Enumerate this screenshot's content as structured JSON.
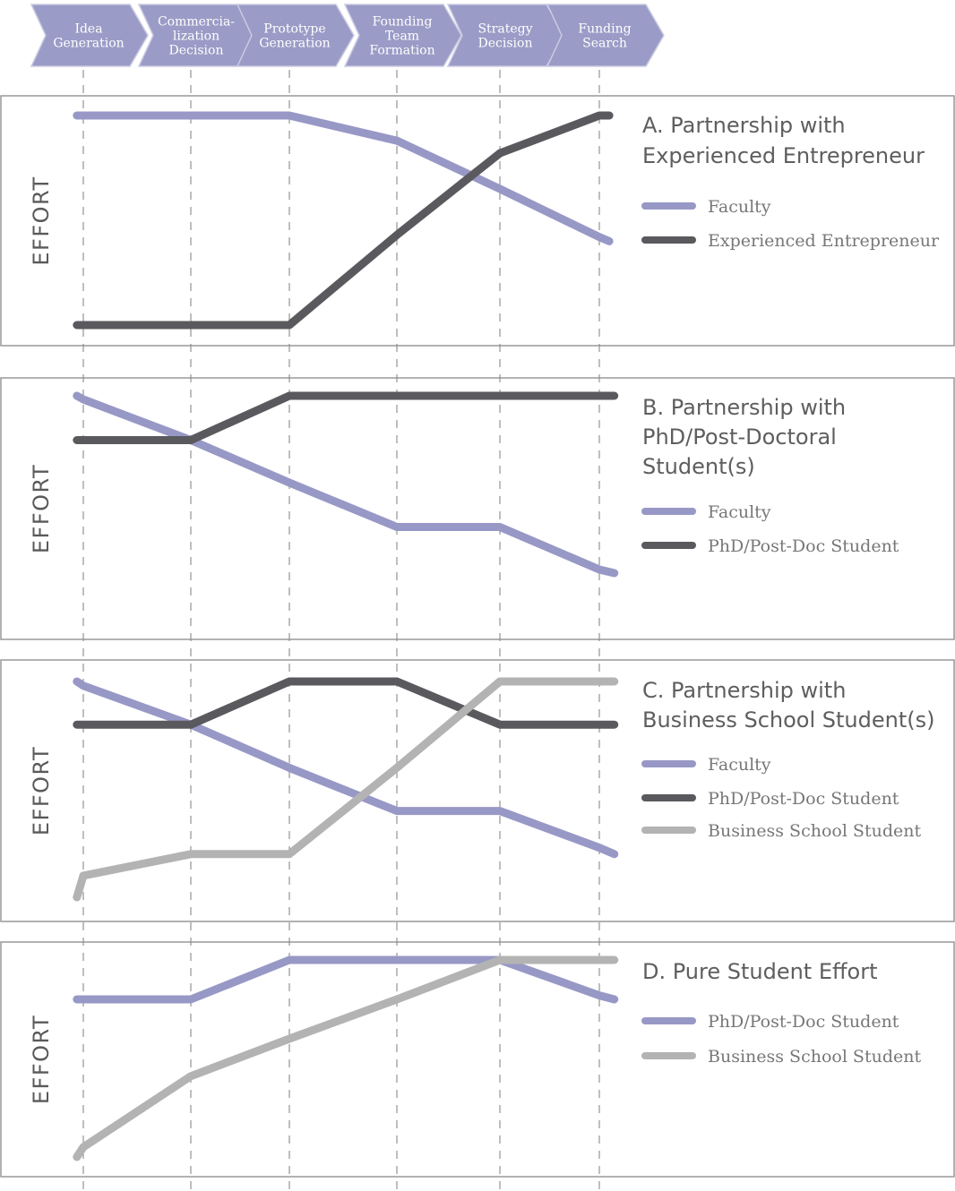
{
  "stages": [
    {
      "id": "s1",
      "lines": [
        "Idea",
        "Generation"
      ]
    },
    {
      "id": "s2",
      "lines": [
        "Commercia-",
        "lization",
        "Decision"
      ]
    },
    {
      "id": "s3",
      "lines": [
        "Prototype",
        "Generation"
      ]
    },
    {
      "id": "s4",
      "lines": [
        "Founding",
        "Team",
        "Formation"
      ]
    },
    {
      "id": "s5",
      "lines": [
        "Strategy",
        "Decision"
      ]
    },
    {
      "id": "s6",
      "lines": [
        "Funding",
        "Search"
      ]
    }
  ],
  "colors": {
    "faculty": "#9898c6",
    "dark": "#5a5a5e",
    "light": "#b3b3b3",
    "chevron": "#9a9bc6",
    "chevron_text": "#ffffff",
    "frame": "#999999",
    "axis_text": "#5a5a5a",
    "title_text": "#5e5e5e",
    "legend_text": "#777777"
  },
  "chart_data": [
    {
      "type": "line",
      "panel": "A",
      "title_lines": [
        "A. Partnership with",
        "Experienced Entrepreneur"
      ],
      "ylabel": "EFFORT",
      "ylim": [
        0,
        1
      ],
      "grid": "dashed vertical at each stage",
      "legend": "right",
      "categories": [
        "Idea Generation",
        "Commercialization Decision",
        "Prototype Generation",
        "Founding Team Formation",
        "Strategy Decision",
        "Funding Search"
      ],
      "series": [
        {
          "name": "Faculty",
          "color_key": "faculty",
          "x": [
            -0.06,
            0,
            1,
            2,
            3,
            4,
            5,
            5.1
          ],
          "values": [
            1.0,
            1.0,
            1.0,
            1.0,
            0.88,
            0.65,
            0.42,
            0.4
          ]
        },
        {
          "name": "Experienced Entrepreneur",
          "color_key": "dark",
          "x": [
            -0.06,
            0,
            1,
            2,
            3,
            4,
            5,
            5.1
          ],
          "values": [
            0.0,
            0.0,
            0.0,
            0.0,
            0.43,
            0.82,
            1.0,
            1.0
          ]
        }
      ]
    },
    {
      "type": "line",
      "panel": "B",
      "title_lines": [
        "B. Partnership with",
        "PhD/Post-Doctoral",
        "Student(s)"
      ],
      "ylabel": "EFFORT",
      "ylim": [
        0,
        1
      ],
      "grid": "dashed vertical at each stage",
      "legend": "right",
      "categories": [
        "Idea Generation",
        "Commercialization Decision",
        "Prototype Generation",
        "Founding Team Formation",
        "Strategy Decision",
        "Funding Search"
      ],
      "series": [
        {
          "name": "Faculty",
          "color_key": "faculty",
          "x": [
            -0.06,
            0,
            1,
            2,
            3,
            4,
            5,
            5.15
          ],
          "values": [
            1.0,
            0.98,
            0.75,
            0.51,
            0.26,
            0.26,
            0.02,
            0.0
          ]
        },
        {
          "name": "PhD/Post-Doc Student",
          "color_key": "dark",
          "x": [
            -0.06,
            0,
            1,
            2,
            3,
            4,
            5,
            5.15
          ],
          "values": [
            0.75,
            0.75,
            0.75,
            1.0,
            1.0,
            1.0,
            1.0,
            1.0
          ]
        }
      ]
    },
    {
      "type": "line",
      "panel": "C",
      "title_lines": [
        "C. Partnership with",
        "Business School Student(s)"
      ],
      "ylabel": "EFFORT",
      "ylim": [
        0,
        1
      ],
      "grid": "dashed vertical at each stage",
      "legend": "right",
      "categories": [
        "Idea Generation",
        "Commercialization Decision",
        "Prototype Generation",
        "Founding Team Formation",
        "Strategy Decision",
        "Funding Search"
      ],
      "series": [
        {
          "name": "Faculty",
          "color_key": "faculty",
          "x": [
            -0.06,
            0,
            1,
            2,
            3,
            4,
            5,
            5.15
          ],
          "values": [
            1.0,
            0.98,
            0.8,
            0.6,
            0.4,
            0.4,
            0.23,
            0.2
          ]
        },
        {
          "name": "PhD/Post-Doc Student",
          "color_key": "dark",
          "x": [
            -0.06,
            0,
            1,
            2,
            3,
            4,
            5,
            5.15
          ],
          "values": [
            0.8,
            0.8,
            0.8,
            1.0,
            1.0,
            0.8,
            0.8,
            0.8
          ]
        },
        {
          "name": "Business School Student",
          "color_key": "light",
          "x": [
            -0.06,
            0,
            1,
            2,
            3,
            4,
            5,
            5.15
          ],
          "values": [
            0.0,
            0.1,
            0.2,
            0.2,
            0.6,
            1.0,
            1.0,
            1.0
          ]
        }
      ]
    },
    {
      "type": "line",
      "panel": "D",
      "title_lines": [
        "D. Pure Student Effort"
      ],
      "ylabel": "EFFORT",
      "ylim": [
        0,
        1
      ],
      "grid": "dashed vertical at each stage",
      "legend": "right",
      "categories": [
        "Idea Generation",
        "Commercialization Decision",
        "Prototype Generation",
        "Founding Team Formation",
        "Strategy Decision",
        "Funding Search"
      ],
      "series": [
        {
          "name": "PhD/Post-Doc Student",
          "color_key": "faculty",
          "x": [
            -0.06,
            0,
            1,
            2,
            3,
            4,
            5,
            5.15
          ],
          "values": [
            0.8,
            0.8,
            0.8,
            1.0,
            1.0,
            1.0,
            0.82,
            0.8
          ]
        },
        {
          "name": "Business School Student",
          "color_key": "light",
          "x": [
            -0.06,
            0,
            1,
            2,
            3,
            4,
            5,
            5.15
          ],
          "values": [
            0.0,
            0.05,
            0.41,
            0.6,
            0.8,
            1.0,
            1.0,
            1.0
          ]
        }
      ]
    }
  ]
}
